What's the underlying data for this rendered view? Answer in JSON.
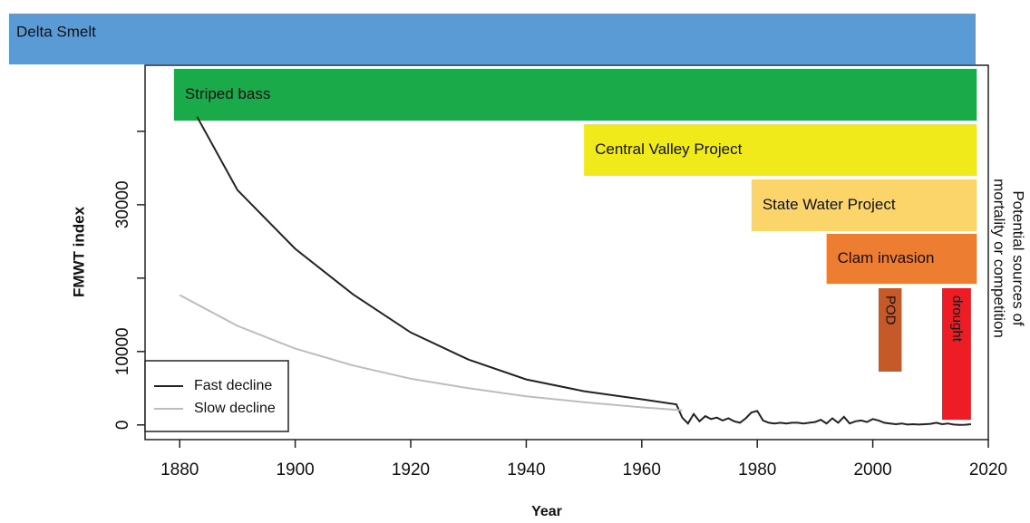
{
  "chart_data": {
    "type": "line",
    "banner": "Delta Smelt",
    "x_label": "Year",
    "y_label": "FMWT index",
    "right_label": [
      "Potential sources of",
      "mortality or competition"
    ],
    "xlim": [
      1874,
      2020
    ],
    "xticks": [
      1880,
      1900,
      1920,
      1940,
      1960,
      1980,
      2000,
      2020
    ],
    "ylim": [
      -2000,
      49000
    ],
    "yticks": [
      0,
      10000,
      30000
    ],
    "y_minor_ticks": [
      20000,
      40000
    ],
    "legend": "bottom-left",
    "series": [
      {
        "name": "Fast decline",
        "color": "#222222",
        "x": [
          1883,
          1890,
          1900,
          1910,
          1920,
          1930,
          1940,
          1950,
          1960,
          1966,
          1967,
          1968,
          1969,
          1970,
          1971,
          1972,
          1973,
          1974,
          1975,
          1976,
          1977,
          1978,
          1979,
          1980,
          1981,
          1982,
          1983,
          1984,
          1985,
          1986,
          1987,
          1988,
          1989,
          1990,
          1991,
          1992,
          1993,
          1994,
          1995,
          1996,
          1997,
          1998,
          1999,
          2000,
          2001,
          2002,
          2003,
          2004,
          2005,
          2006,
          2007,
          2008,
          2009,
          2010,
          2011,
          2012,
          2013,
          2014,
          2015,
          2016,
          2017
        ],
        "values": [
          42000,
          32000,
          24000,
          17800,
          12600,
          8900,
          6200,
          4600,
          3500,
          2800,
          1000,
          200,
          1500,
          500,
          1200,
          800,
          1000,
          600,
          900,
          500,
          300,
          900,
          1700,
          1900,
          600,
          300,
          200,
          300,
          200,
          300,
          300,
          200,
          300,
          400,
          700,
          200,
          900,
          300,
          1100,
          200,
          500,
          600,
          400,
          800,
          600,
          300,
          200,
          100,
          200,
          50,
          100,
          50,
          100,
          150,
          300,
          100,
          200,
          50,
          8,
          30,
          100
        ]
      },
      {
        "name": "Slow decline",
        "color": "#bdbdbd",
        "x": [
          1880,
          1890,
          1900,
          1910,
          1920,
          1930,
          1940,
          1950,
          1960,
          1967
        ],
        "values": [
          17700,
          13500,
          10400,
          8100,
          6300,
          5000,
          3900,
          3100,
          2400,
          2000
        ]
      }
    ],
    "intervals": [
      {
        "label": "Striped bass",
        "start": 1879,
        "end": 2018,
        "color": "#1aaa4a"
      },
      {
        "label": "Central Valley Project",
        "start": 1950,
        "end": 2018,
        "color": "#f0ea1a"
      },
      {
        "label": "State Water Project",
        "start": 1979,
        "end": 2018,
        "color": "#fbd46a"
      },
      {
        "label": "Clam invasion",
        "start": 1992,
        "end": 2018,
        "color": "#ec7d31"
      },
      {
        "label": "POD",
        "start": 2001,
        "end": 2005,
        "color": "#c55a28"
      },
      {
        "label": "drought",
        "start": 2012,
        "end": 2017,
        "color": "#ee1c25"
      }
    ]
  }
}
